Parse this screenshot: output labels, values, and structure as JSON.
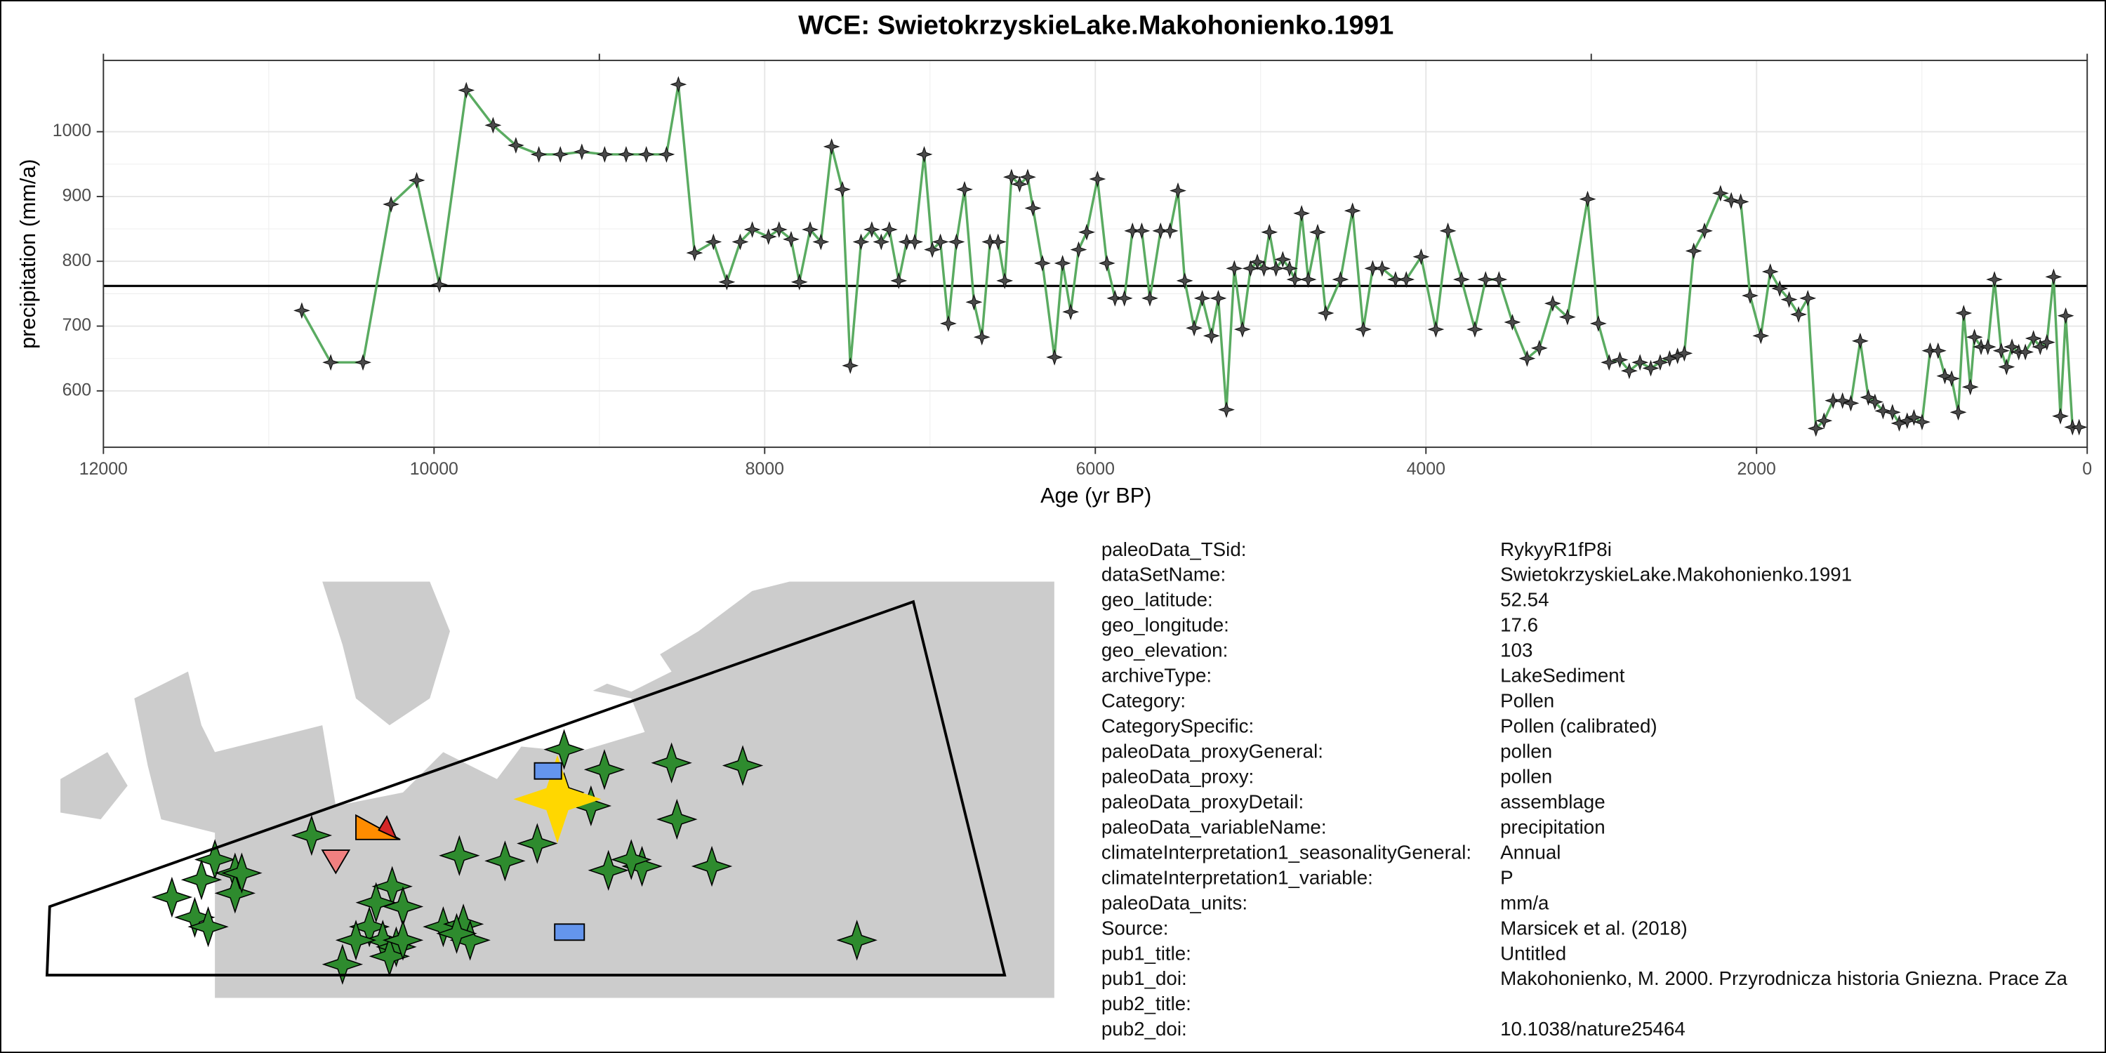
{
  "chart_data": {
    "type": "line",
    "title": "WCE: SwietokrzyskieLake.Makohonienko.1991",
    "x_label": "Age (yr BP)",
    "y_label": "precipitation (mm/a)",
    "xlim": [
      12000,
      0
    ],
    "ylim": [
      513,
      1110
    ],
    "xticks": [
      12000,
      10000,
      8000,
      6000,
      4000,
      2000,
      0
    ],
    "x2ticks": [
      12000,
      9000,
      3000,
      0
    ],
    "yticks": [
      600,
      700,
      800,
      900,
      1000
    ],
    "grid": true,
    "hline": 762,
    "series": [
      {
        "color": "#5aab61",
        "marker_color": "#4a4a4a",
        "x": [
          10800,
          10625,
          10430,
          10260,
          10105,
          9968,
          9805,
          9643,
          9505,
          9366,
          9236,
          9106,
          8968,
          8838,
          8716,
          8594,
          8522,
          8424,
          8310,
          8229,
          8148,
          8075,
          7977,
          7913,
          7840,
          7790,
          7725,
          7660,
          7595,
          7530,
          7482,
          7417,
          7352,
          7295,
          7246,
          7189,
          7141,
          7092,
          7035,
          6986,
          6937,
          6889,
          6840,
          6791,
          6734,
          6686,
          6637,
          6588,
          6548,
          6507,
          6458,
          6409,
          6377,
          6320,
          6247,
          6198,
          6149,
          6101,
          6052,
          5987,
          5930,
          5881,
          5824,
          5775,
          5719,
          5670,
          5605,
          5548,
          5500,
          5459,
          5402,
          5353,
          5297,
          5256,
          5207,
          5159,
          5110,
          5061,
          5020,
          4980,
          4947,
          4907,
          4866,
          4825,
          4793,
          4752,
          4712,
          4655,
          4606,
          4517,
          4444,
          4379,
          4322,
          4265,
          4184,
          4119,
          4029,
          3940,
          3867,
          3785,
          3704,
          3639,
          3558,
          3477,
          3388,
          3314,
          3233,
          3144,
          3022,
          2957,
          2892,
          2827,
          2770,
          2705,
          2640,
          2583,
          2526,
          2478,
          2437,
          2380,
          2315,
          2218,
          2153,
          2096,
          2039,
          1974,
          1917,
          1860,
          1803,
          1746,
          1690,
          1641,
          1592,
          1537,
          1480,
          1430,
          1373,
          1324,
          1284,
          1235,
          1178,
          1137,
          1089,
          1048,
          999,
          950,
          902,
          861,
          820,
          780,
          747,
          707,
          682,
          642,
          601,
          561,
          520,
          488,
          455,
          414,
          374,
          325,
          284,
          244,
          203,
          162,
          130,
          89,
          49
        ],
        "values": [
          724,
          644,
          644,
          888,
          925,
          764,
          1064,
          1010,
          979,
          965,
          965,
          969,
          965,
          965,
          965,
          965,
          1073,
          813,
          830,
          768,
          830,
          849,
          838,
          849,
          834,
          768,
          849,
          830,
          977,
          911,
          639,
          830,
          849,
          830,
          849,
          770,
          830,
          830,
          965,
          818,
          830,
          704,
          830,
          911,
          737,
          683,
          830,
          830,
          770,
          930,
          919,
          930,
          882,
          797,
          652,
          797,
          722,
          818,
          845,
          927,
          797,
          743,
          743,
          847,
          847,
          743,
          847,
          847,
          909,
          770,
          697,
          743,
          685,
          743,
          571,
          789,
          695,
          789,
          799,
          789,
          845,
          789,
          803,
          789,
          772,
          874,
          772,
          845,
          720,
          772,
          878,
          695,
          789,
          789,
          772,
          772,
          807,
          695,
          847,
          772,
          695,
          772,
          772,
          706,
          650,
          666,
          735,
          714,
          896,
          704,
          644,
          648,
          631,
          644,
          635,
          644,
          650,
          654,
          658,
          816,
          847,
          905,
          894,
          892,
          747,
          685,
          784,
          758,
          741,
          718,
          743,
          542,
          554,
          585,
          585,
          581,
          677,
          590,
          583,
          569,
          567,
          550,
          554,
          559,
          552,
          662,
          662,
          623,
          619,
          567,
          720,
          606,
          683,
          668,
          668,
          772,
          662,
          637,
          668,
          660,
          660,
          681,
          668,
          675,
          776,
          561,
          716,
          544,
          544
        ]
      }
    ]
  },
  "metadata": [
    {
      "key": "paleoData_TSid:",
      "value": "RykyyR1fP8i"
    },
    {
      "key": "dataSetName:",
      "value": "SwietokrzyskieLake.Makohonienko.1991"
    },
    {
      "key": "geo_latitude:",
      "value": "52.54"
    },
    {
      "key": "geo_longitude:",
      "value": "17.6"
    },
    {
      "key": "geo_elevation:",
      "value": "103"
    },
    {
      "key": "archiveType:",
      "value": "LakeSediment"
    },
    {
      "key": "Category:",
      "value": "Pollen"
    },
    {
      "key": "CategorySpecific:",
      "value": "Pollen (calibrated)"
    },
    {
      "key": "paleoData_proxyGeneral:",
      "value": "pollen"
    },
    {
      "key": "paleoData_proxy:",
      "value": "pollen"
    },
    {
      "key": "paleoData_proxyDetail:",
      "value": "assemblage"
    },
    {
      "key": "paleoData_variableName:",
      "value": "precipitation"
    },
    {
      "key": "climateInterpretation1_seasonalityGeneral:",
      "value": "Annual"
    },
    {
      "key": "climateInterpretation1_variable:",
      "value": "P"
    },
    {
      "key": "paleoData_units:",
      "value": "mm/a"
    },
    {
      "key": "Source:",
      "value": "Marsicek et al. (2018)"
    },
    {
      "key": "pub1_title:",
      "value": "Untitled"
    },
    {
      "key": "pub1_doi:",
      "value": "Makohonienko, M. 2000. Przyrodnicza historia Gniezna. Prace Za"
    },
    {
      "key": "pub2_title:",
      "value": null
    },
    {
      "key": "pub2_doi:",
      "value": "10.1038/nature25464"
    }
  ]
}
